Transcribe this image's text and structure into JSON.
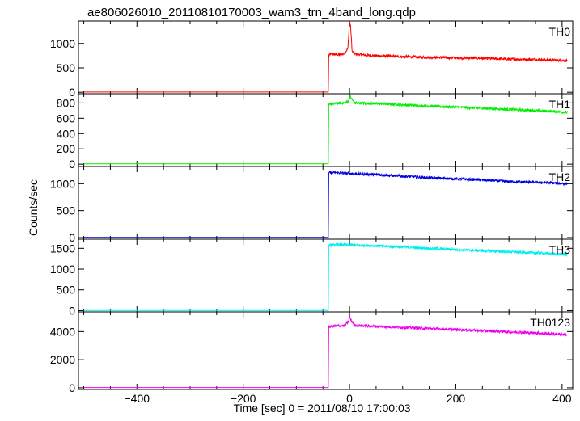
{
  "chart_data": {
    "type": "line",
    "title": "ae806026010_20110810170003_wam3_trn_4band_long.qdp",
    "xlabel": "Time [sec] 0 = 2011/08/10 17:00:03",
    "ylabel": "Counts/sec",
    "xlim": [
      -510,
      420
    ],
    "x_ticks": [
      -400,
      -200,
      0,
      200,
      400
    ],
    "x_tick_labels": [
      "−400",
      "−200",
      "0",
      "200",
      "400"
    ],
    "grid": false,
    "legend": "none",
    "panels": [
      {
        "name": "TH0",
        "color": "#ff0000",
        "ylim": [
          -30,
          1460
        ],
        "y_ticks": [
          0,
          500,
          1000
        ],
        "x_start": -500,
        "step_time": -40,
        "pre_level": 5,
        "points": [
          [
            -40,
            5
          ],
          [
            -39,
            760
          ],
          [
            -35,
            780
          ],
          [
            -20,
            770
          ],
          [
            -10,
            790
          ],
          [
            -3,
            900
          ],
          [
            0,
            1460
          ],
          [
            2,
            1350
          ],
          [
            5,
            830
          ],
          [
            12,
            780
          ],
          [
            30,
            760
          ],
          [
            60,
            745
          ],
          [
            100,
            730
          ],
          [
            150,
            715
          ],
          [
            200,
            705
          ],
          [
            250,
            695
          ],
          [
            300,
            680
          ],
          [
            350,
            670
          ],
          [
            380,
            660
          ],
          [
            410,
            650
          ]
        ]
      },
      {
        "name": "TH1",
        "color": "#00ee00",
        "ylim": [
          -30,
          920
        ],
        "y_ticks": [
          0,
          200,
          400,
          600,
          800
        ],
        "x_start": -500,
        "step_time": -40,
        "pre_level": 5,
        "points": [
          [
            -40,
            5
          ],
          [
            -39,
            770
          ],
          [
            -30,
            790
          ],
          [
            -10,
            800
          ],
          [
            -2,
            820
          ],
          [
            0,
            900
          ],
          [
            3,
            860
          ],
          [
            10,
            800
          ],
          [
            50,
            790
          ],
          [
            100,
            775
          ],
          [
            150,
            760
          ],
          [
            200,
            745
          ],
          [
            250,
            730
          ],
          [
            300,
            715
          ],
          [
            350,
            700
          ],
          [
            380,
            690
          ],
          [
            410,
            680
          ]
        ]
      },
      {
        "name": "TH2",
        "color": "#0000dd",
        "ylim": [
          -30,
          1320
        ],
        "y_ticks": [
          0,
          500,
          1000
        ],
        "x_start": -500,
        "step_time": -40,
        "pre_level": 5,
        "points": [
          [
            -40,
            5
          ],
          [
            -39,
            1200
          ],
          [
            -30,
            1210
          ],
          [
            0,
            1190
          ],
          [
            50,
            1170
          ],
          [
            100,
            1140
          ],
          [
            150,
            1110
          ],
          [
            200,
            1090
          ],
          [
            250,
            1070
          ],
          [
            300,
            1040
          ],
          [
            350,
            1025
          ],
          [
            380,
            1015
          ],
          [
            410,
            1000
          ]
        ]
      },
      {
        "name": "TH3",
        "color": "#00eeee",
        "ylim": [
          -30,
          1720
        ],
        "y_ticks": [
          0,
          500,
          1000,
          1500
        ],
        "x_start": -500,
        "step_time": -40,
        "pre_level": 5,
        "points": [
          [
            -40,
            5
          ],
          [
            -39,
            1570
          ],
          [
            -20,
            1590
          ],
          [
            0,
            1580
          ],
          [
            50,
            1560
          ],
          [
            100,
            1530
          ],
          [
            150,
            1500
          ],
          [
            200,
            1470
          ],
          [
            250,
            1440
          ],
          [
            300,
            1415
          ],
          [
            350,
            1390
          ],
          [
            380,
            1370
          ],
          [
            410,
            1350
          ]
        ]
      },
      {
        "name": "TH0123",
        "color": "#ee00ee",
        "ylim": [
          -120,
          5400
        ],
        "y_ticks": [
          0,
          2000,
          4000
        ],
        "x_start": -500,
        "step_time": -40,
        "pre_level": 20,
        "points": [
          [
            -40,
            20
          ],
          [
            -39,
            4350
          ],
          [
            -25,
            4400
          ],
          [
            -10,
            4420
          ],
          [
            -2,
            4700
          ],
          [
            0,
            5050
          ],
          [
            3,
            4800
          ],
          [
            10,
            4450
          ],
          [
            40,
            4380
          ],
          [
            100,
            4300
          ],
          [
            150,
            4220
          ],
          [
            200,
            4140
          ],
          [
            250,
            4060
          ],
          [
            300,
            3980
          ],
          [
            350,
            3900
          ],
          [
            380,
            3840
          ],
          [
            410,
            3780
          ]
        ]
      }
    ]
  }
}
